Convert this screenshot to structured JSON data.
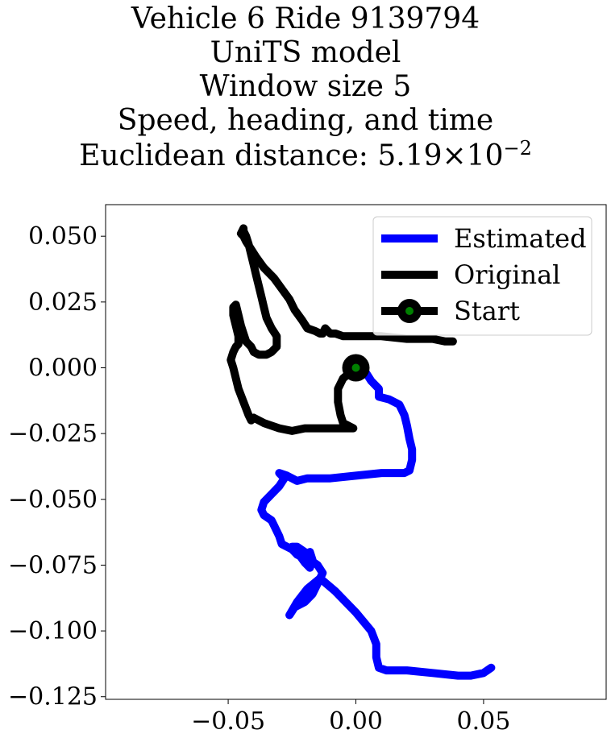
{
  "chart_data": {
    "type": "line",
    "title_lines": [
      "Vehicle 6 Ride 9139794",
      "UniTS model",
      "Window size 5",
      "Speed, heading, and time"
    ],
    "title_metric_prefix": "Euclidean distance: 5.19",
    "title_metric_times": "×",
    "title_metric_base": "10",
    "title_metric_exponent": "−2",
    "xlim": [
      -0.098,
      0.098
    ],
    "ylim": [
      -0.126,
      0.062
    ],
    "x_ticks": [
      -0.05,
      0.0,
      0.05
    ],
    "x_tick_labels": [
      "−0.05",
      "0.00",
      "0.05"
    ],
    "y_ticks": [
      0.05,
      0.025,
      0.0,
      -0.025,
      -0.05,
      -0.075,
      -0.1,
      -0.125
    ],
    "y_tick_labels": [
      "0.050",
      "0.025",
      "0.000",
      "−0.025",
      "−0.050",
      "−0.075",
      "−0.100",
      "−0.125"
    ],
    "grid": false,
    "legend_position": "upper-right",
    "series": [
      {
        "name": "Estimated",
        "color": "#0000ff",
        "x": [
          0.0,
          0.004,
          0.006,
          0.009,
          0.009,
          0.013,
          0.017,
          0.019,
          0.02,
          0.021,
          0.022,
          0.022,
          0.021,
          0.019,
          0.016,
          0.01,
          0.0,
          -0.01,
          -0.019,
          -0.023,
          -0.027,
          -0.03,
          -0.028,
          -0.03,
          -0.033,
          -0.036,
          -0.037,
          -0.036,
          -0.033,
          -0.032,
          -0.03,
          -0.029,
          -0.025,
          -0.023,
          -0.021,
          -0.018,
          -0.017,
          -0.018,
          -0.02,
          -0.023,
          -0.025,
          -0.023,
          -0.02,
          -0.018,
          -0.015,
          -0.013,
          -0.015,
          -0.017,
          -0.02,
          -0.024,
          -0.026,
          -0.023,
          -0.019,
          -0.014,
          -0.008,
          0.0,
          0.006,
          0.008,
          0.008,
          0.009,
          0.012,
          0.02,
          0.03,
          0.04,
          0.045,
          0.05,
          0.053
        ],
        "y": [
          0.0,
          -0.002,
          -0.005,
          -0.008,
          -0.011,
          -0.012,
          -0.014,
          -0.018,
          -0.022,
          -0.027,
          -0.031,
          -0.035,
          -0.039,
          -0.04,
          -0.04,
          -0.04,
          -0.041,
          -0.042,
          -0.042,
          -0.043,
          -0.041,
          -0.04,
          -0.042,
          -0.045,
          -0.048,
          -0.051,
          -0.054,
          -0.056,
          -0.058,
          -0.06,
          -0.064,
          -0.067,
          -0.069,
          -0.071,
          -0.072,
          -0.07,
          -0.073,
          -0.076,
          -0.074,
          -0.07,
          -0.068,
          -0.068,
          -0.07,
          -0.073,
          -0.075,
          -0.078,
          -0.082,
          -0.086,
          -0.089,
          -0.091,
          -0.094,
          -0.089,
          -0.084,
          -0.08,
          -0.085,
          -0.093,
          -0.1,
          -0.105,
          -0.11,
          -0.114,
          -0.115,
          -0.115,
          -0.116,
          -0.117,
          -0.117,
          -0.116,
          -0.114
        ]
      },
      {
        "name": "Original",
        "color": "#000000",
        "x": [
          0.0,
          -0.005,
          -0.007,
          -0.007,
          -0.006,
          -0.005,
          -0.001,
          -0.002,
          -0.005,
          -0.01,
          -0.02,
          -0.025,
          -0.03,
          -0.036,
          -0.04,
          -0.041,
          -0.042,
          -0.044,
          -0.046,
          -0.047,
          -0.048,
          -0.049,
          -0.048,
          -0.047,
          -0.046,
          -0.046,
          -0.047,
          -0.048,
          -0.048,
          -0.047,
          -0.046,
          -0.045,
          -0.044,
          -0.043,
          -0.042,
          -0.041,
          -0.04,
          -0.038,
          -0.035,
          -0.033,
          -0.032,
          -0.031,
          -0.031,
          -0.031,
          -0.033,
          -0.035,
          -0.036,
          -0.037,
          -0.038,
          -0.039,
          -0.04,
          -0.041,
          -0.042,
          -0.043,
          -0.044,
          -0.044,
          -0.045,
          -0.044,
          -0.043,
          -0.041,
          -0.039,
          -0.036,
          -0.032,
          -0.029,
          -0.026,
          -0.024,
          -0.021,
          -0.019,
          -0.016,
          -0.014,
          -0.013,
          -0.012,
          -0.011,
          -0.01,
          -0.008,
          -0.005,
          0.0,
          0.01,
          0.02,
          0.03,
          0.035,
          0.038
        ],
        "y": [
          0.0,
          -0.004,
          -0.008,
          -0.013,
          -0.018,
          -0.021,
          -0.023,
          -0.023,
          -0.023,
          -0.023,
          -0.023,
          -0.024,
          -0.023,
          -0.021,
          -0.019,
          -0.02,
          -0.018,
          -0.013,
          -0.008,
          -0.004,
          0.0,
          0.003,
          0.006,
          0.008,
          0.009,
          0.012,
          0.016,
          0.02,
          0.023,
          0.024,
          0.02,
          0.016,
          0.013,
          0.01,
          0.009,
          0.008,
          0.006,
          0.005,
          0.005,
          0.006,
          0.007,
          0.008,
          0.01,
          0.012,
          0.015,
          0.019,
          0.023,
          0.027,
          0.031,
          0.035,
          0.039,
          0.043,
          0.047,
          0.05,
          0.052,
          0.053,
          0.051,
          0.05,
          0.048,
          0.045,
          0.042,
          0.038,
          0.034,
          0.03,
          0.026,
          0.022,
          0.018,
          0.015,
          0.014,
          0.013,
          0.013,
          0.015,
          0.014,
          0.013,
          0.013,
          0.012,
          0.012,
          0.012,
          0.011,
          0.011,
          0.01,
          0.01
        ]
      }
    ],
    "start_marker": {
      "name": "Start",
      "x": 0.0,
      "y": 0.0,
      "outer_color": "#000000",
      "inner_color": "#008000"
    }
  }
}
